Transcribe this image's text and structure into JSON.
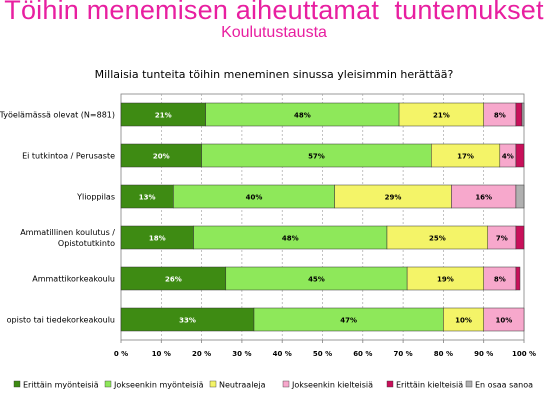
{
  "page": {
    "title": "Töihin menemisen aiheuttamat  tuntemukset",
    "subtitle": "Koulutustausta"
  },
  "colors": {
    "title": "#e81fa0",
    "series": [
      "#3e8b13",
      "#8ee85a",
      "#f4f468",
      "#f7a8cc",
      "#c8105a",
      "#b0b0b0"
    ]
  },
  "chart_data": {
    "type": "bar",
    "orientation": "horizontal",
    "stacked": "percent",
    "title": "Millaisia tunteita töihin meneminen sinussa yleisimmin herättää?",
    "categories": [
      [
        "Työelämässä olevat (N=881)"
      ],
      [
        "Ei tutkintoa / Perusaste"
      ],
      [
        "Ylioppilas"
      ],
      [
        "Ammatillinen koulutus /",
        "Opistotutkinto"
      ],
      [
        "Ammattikorkeakoulu"
      ],
      [
        "opisto tai tiedekorkeakoulu"
      ]
    ],
    "series": [
      {
        "name": "Erittäin myönteisiä",
        "values": [
          21,
          20,
          13,
          18,
          26,
          33
        ]
      },
      {
        "name": "Jokseenkin myönteisiä",
        "values": [
          48,
          57,
          40,
          48,
          45,
          47
        ]
      },
      {
        "name": "Neutraaleja",
        "values": [
          21,
          17,
          29,
          25,
          19,
          10
        ]
      },
      {
        "name": "Jokseenkin kielteisiä",
        "values": [
          8,
          4,
          16,
          7,
          8,
          10
        ]
      },
      {
        "name": "Erittäin kielteisiä",
        "values": [
          1.5,
          2,
          0,
          2,
          1,
          0
        ]
      },
      {
        "name": "En osaa sanoa",
        "values": [
          0.5,
          0,
          2,
          0,
          0,
          0
        ]
      }
    ],
    "data_labels": [
      [
        "21%",
        "48%",
        "21%",
        "8%",
        "",
        ""
      ],
      [
        "20%",
        "57%",
        "17%",
        "4%",
        "",
        ""
      ],
      [
        "13%",
        "40%",
        "29%",
        "16%",
        "",
        ""
      ],
      [
        "18%",
        "48%",
        "25%",
        "7%",
        "",
        ""
      ],
      [
        "26%",
        "45%",
        "19%",
        "8%",
        "",
        ""
      ],
      [
        "33%",
        "47%",
        "10%",
        "10%",
        "",
        ""
      ]
    ],
    "x_ticks": [
      "0 %",
      "10 %",
      "20 %",
      "30 %",
      "40 %",
      "50 %",
      "60 %",
      "70 %",
      "80 %",
      "90 %",
      "100 %"
    ],
    "xlim": [
      0,
      100
    ],
    "grid": true,
    "legend": "bottom"
  }
}
